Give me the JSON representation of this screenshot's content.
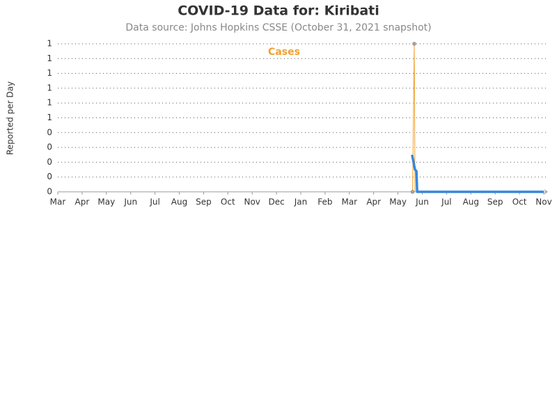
{
  "chart_data": {
    "type": "line",
    "title": "COVID-19 Data for: Kiribati",
    "subtitle": "Data source: Johns Hopkins CSSE (October 31, 2021 snapshot)",
    "y_label": "Reported per Day",
    "series": [
      {
        "name": "Cases",
        "color": "#f0a030",
        "x": [
          14.6,
          14.67,
          14.7,
          20
        ],
        "values": [
          0,
          1,
          0,
          0
        ]
      },
      {
        "color": "#3a86d8",
        "x": [
          14.58,
          14.7,
          14.76,
          14.79,
          20
        ],
        "values": [
          0.25,
          0.15,
          0.14,
          0,
          0
        ]
      }
    ],
    "xlim": [
      0,
      20
    ],
    "xticks": [
      {
        "value": 0,
        "label": "Mar"
      },
      {
        "value": 1,
        "label": "Apr"
      },
      {
        "value": 2,
        "label": "May"
      },
      {
        "value": 3,
        "label": "Jun"
      },
      {
        "value": 4,
        "label": "Jul"
      },
      {
        "value": 5,
        "label": "Aug"
      },
      {
        "value": 6,
        "label": "Sep"
      },
      {
        "value": 7,
        "label": "Oct"
      },
      {
        "value": 8,
        "label": "Nov"
      },
      {
        "value": 9,
        "label": "Dec"
      },
      {
        "value": 10,
        "label": "Jan"
      },
      {
        "value": 11,
        "label": "Feb"
      },
      {
        "value": 12,
        "label": "Mar"
      },
      {
        "value": 13,
        "label": "Apr"
      },
      {
        "value": 14,
        "label": "May"
      },
      {
        "value": 15,
        "label": "Jun"
      },
      {
        "value": 16,
        "label": "Jul"
      },
      {
        "value": 17,
        "label": "Aug"
      },
      {
        "value": 18,
        "label": "Sep"
      },
      {
        "value": 19,
        "label": "Oct"
      },
      {
        "value": 20,
        "label": "Nov"
      }
    ],
    "ylim": [
      0,
      1
    ],
    "yticks": [
      0,
      {
        "value": 0.1,
        "label": "0"
      },
      {
        "value": 0.2,
        "label": "0"
      },
      {
        "value": 0.3,
        "label": "0"
      },
      {
        "value": 0.4,
        "label": "0"
      },
      {
        "value": 0.5,
        "label": "1"
      },
      {
        "value": 0.6,
        "label": "1"
      },
      {
        "value": 0.7,
        "label": "1"
      },
      {
        "value": 0.8,
        "label": "1"
      },
      {
        "value": 0.9,
        "label": "1"
      },
      1
    ],
    "grid": true
  }
}
